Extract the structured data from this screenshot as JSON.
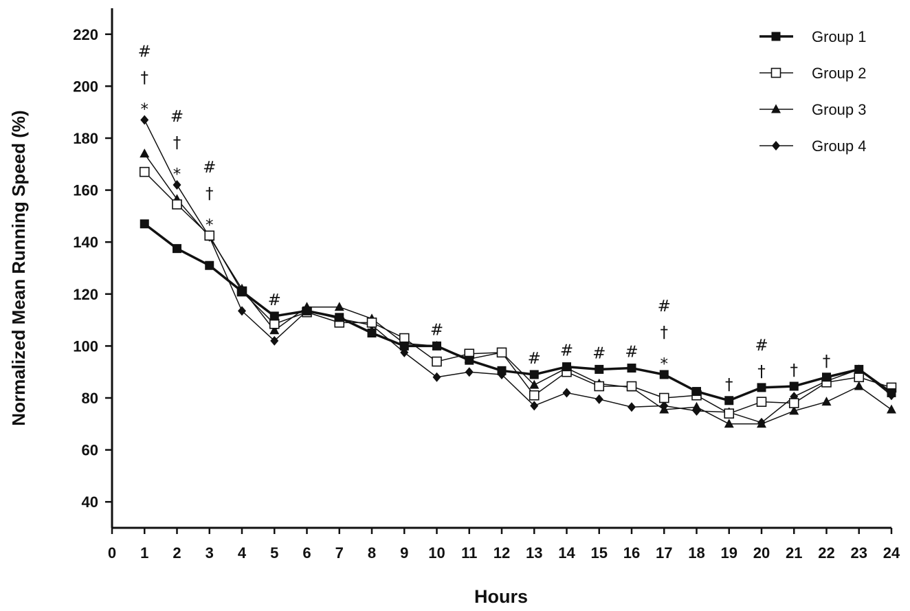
{
  "chart_data": {
    "type": "line",
    "xlabel": "Hours",
    "ylabel": "Normalized Mean Running Speed (%)",
    "xlim": [
      0,
      24
    ],
    "ylim": [
      30,
      230
    ],
    "x_ticks": [
      0,
      1,
      2,
      3,
      4,
      5,
      6,
      7,
      8,
      9,
      10,
      11,
      12,
      13,
      14,
      15,
      16,
      17,
      18,
      19,
      20,
      21,
      22,
      23,
      24
    ],
    "y_ticks": [
      40,
      60,
      80,
      100,
      120,
      140,
      160,
      180,
      200,
      220
    ],
    "grid": false,
    "legend_position": "top-right",
    "x": [
      1,
      2,
      3,
      4,
      5,
      6,
      7,
      8,
      9,
      10,
      11,
      12,
      13,
      14,
      15,
      16,
      17,
      18,
      19,
      20,
      21,
      22,
      23,
      24
    ],
    "series": [
      {
        "name": "Group 1",
        "marker": "filled-square",
        "line": "thick",
        "values": [
          147,
          137.5,
          131,
          121,
          111.5,
          113.5,
          111,
          105,
          100,
          100,
          94.5,
          90.5,
          89,
          92,
          91,
          91.5,
          89,
          82.5,
          79,
          84,
          84.5,
          88,
          91,
          82
        ]
      },
      {
        "name": "Group 2",
        "marker": "open-square",
        "line": "thin",
        "values": [
          167,
          154.5,
          142.5,
          121,
          108.5,
          113,
          109,
          109,
          103,
          94,
          97,
          97.5,
          81,
          90,
          84.5,
          84.5,
          80,
          81,
          74,
          78.5,
          78,
          86,
          88,
          84
        ]
      },
      {
        "name": "Group 3",
        "marker": "filled-triangle",
        "line": "thin",
        "values": [
          174,
          156.5,
          142,
          122,
          106,
          115,
          115,
          110.5,
          101,
          100,
          95,
          97.5,
          85,
          91.5,
          85.5,
          84,
          75.5,
          76.5,
          70,
          70,
          75,
          78.5,
          84.5,
          75.5
        ]
      },
      {
        "name": "Group 4",
        "marker": "filled-diamond",
        "line": "thin",
        "values": [
          187,
          162,
          142,
          113.5,
          102,
          113.5,
          110.5,
          108,
          97.5,
          88,
          90,
          89,
          77,
          82,
          79.5,
          76.5,
          77,
          75,
          74.5,
          70.5,
          80.5,
          86.5,
          91,
          81
        ]
      }
    ],
    "significance": [
      {
        "x": 1,
        "marks": [
          "#",
          "†",
          "*"
        ]
      },
      {
        "x": 2,
        "marks": [
          "#",
          "†",
          "*"
        ]
      },
      {
        "x": 3,
        "marks": [
          "#",
          "†",
          "*"
        ]
      },
      {
        "x": 5,
        "marks": [
          "#"
        ]
      },
      {
        "x": 10,
        "marks": [
          "#"
        ]
      },
      {
        "x": 13,
        "marks": [
          "#"
        ]
      },
      {
        "x": 14,
        "marks": [
          "#"
        ]
      },
      {
        "x": 15,
        "marks": [
          "#"
        ]
      },
      {
        "x": 16,
        "marks": [
          "#"
        ]
      },
      {
        "x": 17,
        "marks": [
          "#",
          "†",
          "*"
        ]
      },
      {
        "x": 19,
        "marks": [
          "†"
        ]
      },
      {
        "x": 20,
        "marks": [
          "#",
          "†"
        ]
      },
      {
        "x": 21,
        "marks": [
          "†"
        ]
      },
      {
        "x": 22,
        "marks": [
          "†"
        ]
      }
    ]
  }
}
